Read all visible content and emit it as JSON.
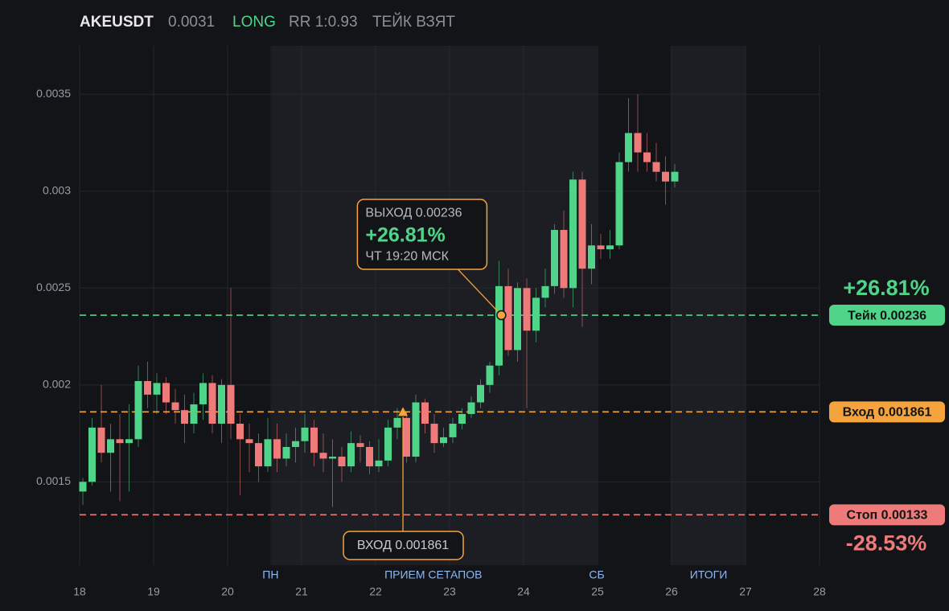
{
  "chart_data": {
    "type": "candlestick",
    "header": {
      "symbol": "AKEUSDT",
      "price": "0.0031",
      "side": "LONG",
      "rr": "RR 1:0.93",
      "status": "ТЕЙК ВЗЯТ"
    },
    "xlim": [
      18,
      28
    ],
    "xticks": [
      18,
      19,
      20,
      21,
      22,
      23,
      24,
      25,
      26,
      27,
      28
    ],
    "ylim": [
      0.00107,
      0.00375
    ],
    "yticks": [
      0.0015,
      0.002,
      0.0025,
      0.003,
      0.0035
    ],
    "grid": true,
    "up_color": "#4fd48a",
    "down_color": "#ef7a7a",
    "bands": [
      [
        20.58,
        24.99
      ],
      [
        25.99,
        27
      ]
    ],
    "sessions": [
      {
        "label": "ПН",
        "x": 20.58
      },
      {
        "label": "ПРИЕМ СЕТАПОВ",
        "x": 22.78
      },
      {
        "label": "СБ",
        "x": 24.99
      },
      {
        "label": "ИТОГИ",
        "x": 26.5
      }
    ],
    "x": [
      18,
      18.125,
      18.25,
      18.375,
      18.5,
      18.625,
      18.75,
      18.875,
      19,
      19.125,
      19.25,
      19.375,
      19.5,
      19.625,
      19.75,
      19.875,
      20,
      20.125,
      20.25,
      20.375,
      20.5,
      20.625,
      20.75,
      20.875,
      21,
      21.125,
      21.25,
      21.375,
      21.5,
      21.625,
      21.75,
      21.875,
      22,
      22.125,
      22.25,
      22.375,
      22.5,
      22.625,
      22.75,
      22.875,
      23,
      23.125,
      23.25,
      23.375,
      23.5,
      23.625,
      23.75,
      23.875,
      24,
      24.125,
      24.25,
      24.375,
      24.5,
      24.625,
      24.75,
      24.875,
      25,
      25.125,
      25.25,
      25.375,
      25.5,
      25.625,
      25.75,
      25.875,
      26
    ],
    "open": [
      0.00145,
      0.0015,
      0.00178,
      0.00165,
      0.00172,
      0.0017,
      0.00172,
      0.00202,
      0.00195,
      0.00201,
      0.00191,
      0.00187,
      0.0018,
      0.0019,
      0.00201,
      0.0018,
      0.002,
      0.0018,
      0.00172,
      0.0017,
      0.00158,
      0.00172,
      0.00162,
      0.00168,
      0.00171,
      0.00178,
      0.00165,
      0.00162,
      0.00163,
      0.00158,
      0.0017,
      0.00168,
      0.00158,
      0.00161,
      0.00178,
      0.00183,
      0.00163,
      0.00191,
      0.0018,
      0.0017,
      0.00173,
      0.0018,
      0.00185,
      0.00191,
      0.002,
      0.0021,
      0.00251,
      0.00218,
      0.0025,
      0.00228,
      0.00245,
      0.00251,
      0.0028,
      0.0025,
      0.00306,
      0.0026,
      0.00272,
      0.0027,
      0.00272,
      0.00315,
      0.0033,
      0.0032,
      0.00315,
      0.0031,
      0.00305
    ],
    "high": [
      0.00152,
      0.00183,
      0.002,
      0.0018,
      0.00185,
      0.0019,
      0.0021,
      0.00212,
      0.00206,
      0.00204,
      0.00198,
      0.00195,
      0.00196,
      0.00206,
      0.00205,
      0.00203,
      0.0025,
      0.00185,
      0.0018,
      0.00175,
      0.00183,
      0.0018,
      0.00175,
      0.00178,
      0.00185,
      0.00182,
      0.00175,
      0.00172,
      0.00168,
      0.00176,
      0.00174,
      0.00171,
      0.00172,
      0.00182,
      0.00188,
      0.00186,
      0.00195,
      0.00193,
      0.00185,
      0.00178,
      0.00183,
      0.00188,
      0.00194,
      0.00203,
      0.00212,
      0.00264,
      0.0026,
      0.00253,
      0.00255,
      0.0025,
      0.0026,
      0.00283,
      0.0029,
      0.0031,
      0.0031,
      0.00283,
      0.00278,
      0.0028,
      0.0032,
      0.00348,
      0.0035,
      0.0033,
      0.00325,
      0.00318,
      0.00314
    ],
    "low": [
      0.00138,
      0.00148,
      0.0016,
      0.00145,
      0.0014,
      0.00145,
      0.00168,
      0.00188,
      0.00185,
      0.00185,
      0.0018,
      0.0017,
      0.00175,
      0.00182,
      0.00175,
      0.0017,
      0.00172,
      0.00143,
      0.00155,
      0.0015,
      0.00155,
      0.00155,
      0.00158,
      0.0016,
      0.00165,
      0.00158,
      0.00155,
      0.00137,
      0.0015,
      0.00155,
      0.0016,
      0.00154,
      0.00155,
      0.00158,
      0.00172,
      0.0016,
      0.0016,
      0.00175,
      0.00165,
      0.00168,
      0.0017,
      0.00177,
      0.00183,
      0.00188,
      0.00196,
      0.00205,
      0.00215,
      0.00212,
      0.00188,
      0.00222,
      0.0024,
      0.00247,
      0.00245,
      0.0024,
      0.0023,
      0.00252,
      0.00265,
      0.00265,
      0.0027,
      0.0031,
      0.0031,
      0.0031,
      0.00305,
      0.00293,
      0.00302
    ],
    "close": [
      0.0015,
      0.00178,
      0.00165,
      0.00172,
      0.0017,
      0.00172,
      0.00202,
      0.00195,
      0.00201,
      0.00191,
      0.00187,
      0.0018,
      0.0019,
      0.00201,
      0.0018,
      0.002,
      0.0018,
      0.00172,
      0.0017,
      0.00158,
      0.00172,
      0.00162,
      0.00168,
      0.00171,
      0.00178,
      0.00165,
      0.00162,
      0.00163,
      0.00158,
      0.0017,
      0.00168,
      0.00158,
      0.00161,
      0.00178,
      0.00183,
      0.00163,
      0.00191,
      0.0018,
      0.0017,
      0.00173,
      0.0018,
      0.00185,
      0.00191,
      0.002,
      0.0021,
      0.00251,
      0.00218,
      0.0025,
      0.00228,
      0.00245,
      0.00251,
      0.0028,
      0.0025,
      0.00306,
      0.0026,
      0.00272,
      0.0027,
      0.00272,
      0.00315,
      0.0033,
      0.0032,
      0.00315,
      0.0031,
      0.00305,
      0.0031
    ],
    "levels": [
      {
        "value": 0.00236,
        "label": "Тейк 0.00236",
        "color": "#4fd48a",
        "pct": "+26.81%"
      },
      {
        "value": 0.001861,
        "label": "Вход 0.001861",
        "color": "#f5a33c"
      },
      {
        "value": 0.00133,
        "label": "Стоп 0.00133",
        "color": "#ef7a7a",
        "pct": "-28.53%"
      }
    ],
    "exit": {
      "x": 23.7,
      "y": 0.00236,
      "title": "ВЫХОД 0.00236",
      "pct": "+26.81%",
      "time": "ЧТ 19:20 МСК"
    },
    "entry": {
      "x": 22.37,
      "y": 0.001861,
      "label": "ВХОД 0.001861"
    }
  }
}
